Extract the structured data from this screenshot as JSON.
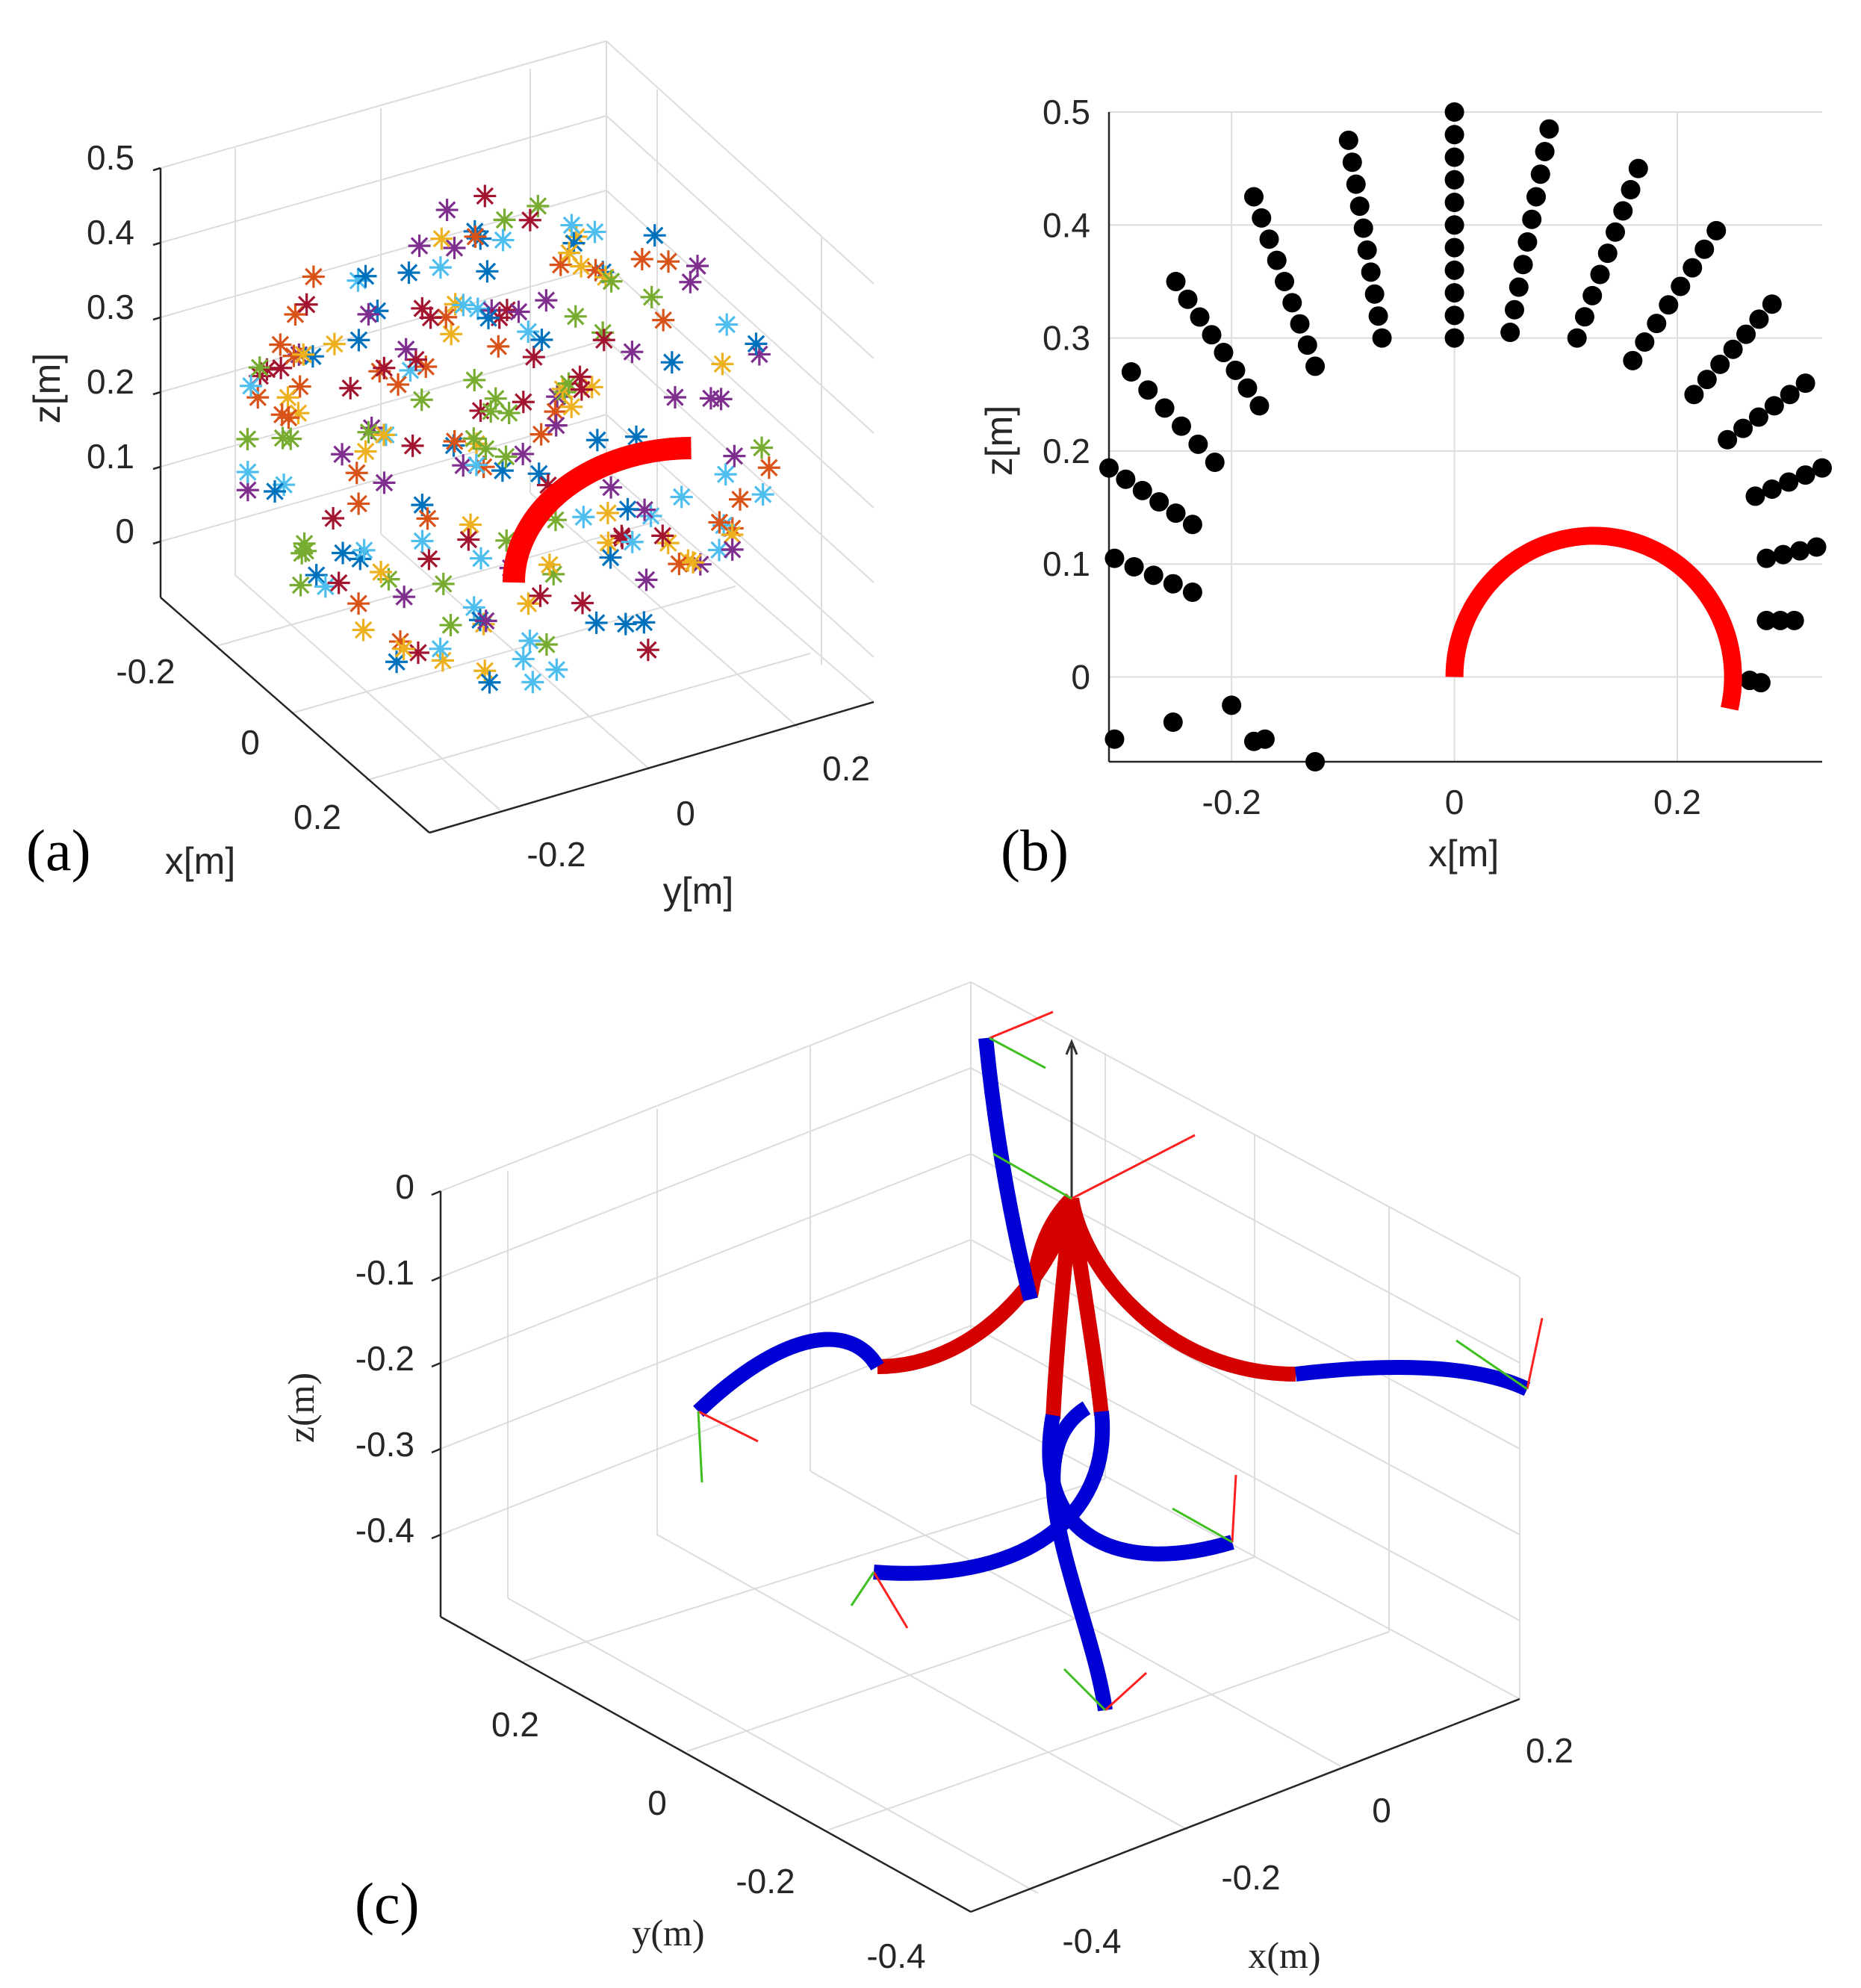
{
  "chart_data": [
    {
      "panel": "(a)",
      "type": "scatter",
      "title": "",
      "xlabel": "x[m]",
      "ylabel": "y[m]",
      "zlabel": "z[m]",
      "x_ticks": [
        "-0.2",
        "0",
        "0.2"
      ],
      "y_ticks": [
        "-0.2",
        "0",
        "0.2"
      ],
      "z_ticks": [
        "0.5",
        "0.4",
        "0.3",
        "0.2",
        "0.1",
        "0"
      ],
      "marker": "asterisk",
      "series_colors": [
        "#0072BD",
        "#D95319",
        "#EDB120",
        "#7E2F8E",
        "#77AC30",
        "#4DBEEE",
        "#A2142F"
      ],
      "description": "multi-colored star markers sampled on a hemisphere of radius ~0.25 m around the base; red continuum robot arc"
    },
    {
      "panel": "(b)",
      "type": "scatter",
      "title": "",
      "xlabel": "x[m]",
      "ylabel": "z[m]",
      "xlim": [
        -0.31,
        0.33
      ],
      "ylim": [
        -0.075,
        0.5
      ],
      "x_ticks": [
        "-0.2",
        "0",
        "0.2"
      ],
      "y_ticks": [
        "0.5",
        "0.4",
        "0.3",
        "0.2",
        "0.1",
        "0"
      ],
      "rays": [
        {
          "x0": -0.305,
          "z0": -0.055,
          "x1": -0.2,
          "z1": -0.025,
          "n": 3
        },
        {
          "x0": -0.305,
          "z0": 0.105,
          "x1": -0.235,
          "z1": 0.075,
          "n": 5
        },
        {
          "x0": -0.31,
          "z0": 0.185,
          "x1": -0.235,
          "z1": 0.135,
          "n": 6
        },
        {
          "x0": -0.29,
          "z0": 0.27,
          "x1": -0.215,
          "z1": 0.19,
          "n": 6
        },
        {
          "x0": -0.25,
          "z0": 0.35,
          "x1": -0.175,
          "z1": 0.24,
          "n": 8
        },
        {
          "x0": -0.18,
          "z0": 0.425,
          "x1": -0.125,
          "z1": 0.275,
          "n": 9
        },
        {
          "x0": -0.095,
          "z0": 0.475,
          "x1": -0.065,
          "z1": 0.3,
          "n": 10
        },
        {
          "x0": 0.0,
          "z0": 0.5,
          "x1": 0.0,
          "z1": 0.3,
          "n": 11
        },
        {
          "x0": 0.085,
          "z0": 0.485,
          "x1": 0.05,
          "z1": 0.305,
          "n": 10
        },
        {
          "x0": 0.165,
          "z0": 0.45,
          "x1": 0.11,
          "z1": 0.3,
          "n": 9
        },
        {
          "x0": 0.235,
          "z0": 0.395,
          "x1": 0.16,
          "z1": 0.28,
          "n": 8
        },
        {
          "x0": 0.285,
          "z0": 0.33,
          "x1": 0.215,
          "z1": 0.25,
          "n": 7
        },
        {
          "x0": 0.315,
          "z0": 0.26,
          "x1": 0.245,
          "z1": 0.21,
          "n": 6
        },
        {
          "x0": 0.33,
          "z0": 0.185,
          "x1": 0.27,
          "z1": 0.16,
          "n": 5
        },
        {
          "x0": 0.325,
          "z0": 0.115,
          "x1": 0.28,
          "z1": 0.105,
          "n": 4
        },
        {
          "x0": 0.305,
          "z0": 0.05,
          "x1": 0.28,
          "z1": 0.05,
          "n": 3
        },
        {
          "x0": 0.275,
          "z0": -0.005,
          "x1": 0.265,
          "z1": -0.003,
          "n": 2
        },
        {
          "x0": -0.125,
          "z0": -0.075,
          "x1": -0.125,
          "z1": -0.075,
          "n": 1
        },
        {
          "x0": -0.17,
          "z0": -0.055,
          "x1": -0.18,
          "z1": -0.057,
          "n": 2
        }
      ],
      "arc": {
        "center_x": 0.125,
        "center_z": 0.0,
        "radius": 0.125,
        "start_deg": 180,
        "end_deg": -13,
        "color": "#ff0000"
      }
    },
    {
      "panel": "(c)",
      "type": "line",
      "title": "",
      "xlabel": "x(m)",
      "ylabel": "y(m)",
      "zlabel": "z(m)",
      "x_ticks": [
        "-0.4",
        "-0.2",
        "0",
        "0.2"
      ],
      "y_ticks": [
        "-0.4",
        "-0.2",
        "0",
        "0.2"
      ],
      "z_ticks": [
        "0",
        "-0.1",
        "-0.2",
        "-0.3",
        "-0.4"
      ],
      "description": "five two-segment continuum robot configurations: red proximal segments, blue distal segments, with RGB frame triads at tips",
      "colors": {
        "proximal": "#d40000",
        "distal": "#0000d4",
        "frame_x": "#ff2020",
        "frame_y": "#40c020",
        "frame_z": "#303030"
      }
    }
  ]
}
